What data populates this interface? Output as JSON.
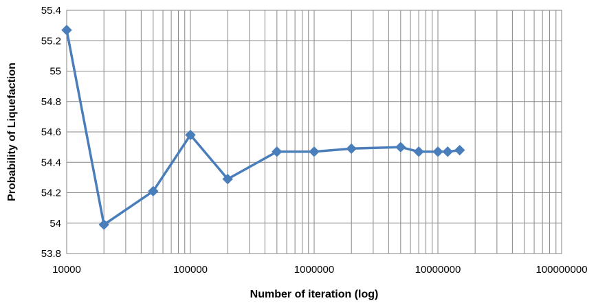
{
  "chart_data": {
    "type": "line",
    "title": "",
    "xlabel": "Number of iteration (log)",
    "ylabel": "Probability of Liquefaction",
    "x_scale": "log",
    "xlim": [
      10000,
      100000000
    ],
    "ylim": [
      53.8,
      55.4
    ],
    "grid": true,
    "legend": "none",
    "x_ticks": [
      "10000",
      "100000",
      "1000000",
      "10000000",
      "100000000"
    ],
    "y_ticks": [
      "53.8",
      "54",
      "54.2",
      "54.4",
      "54.6",
      "54.8",
      "55",
      "55.2",
      "55.4"
    ],
    "series": [
      {
        "color": "#4a7ebb",
        "marker": "diamond",
        "x": [
          10000,
          20000,
          50000,
          100000,
          200000,
          500000,
          1000000,
          2000000,
          5000000,
          7000000,
          10000000,
          12000000,
          15000000
        ],
        "y": [
          55.27,
          53.99,
          54.21,
          54.58,
          54.29,
          54.47,
          54.47,
          54.49,
          54.5,
          54.47,
          54.47,
          54.47,
          54.48
        ]
      }
    ]
  }
}
